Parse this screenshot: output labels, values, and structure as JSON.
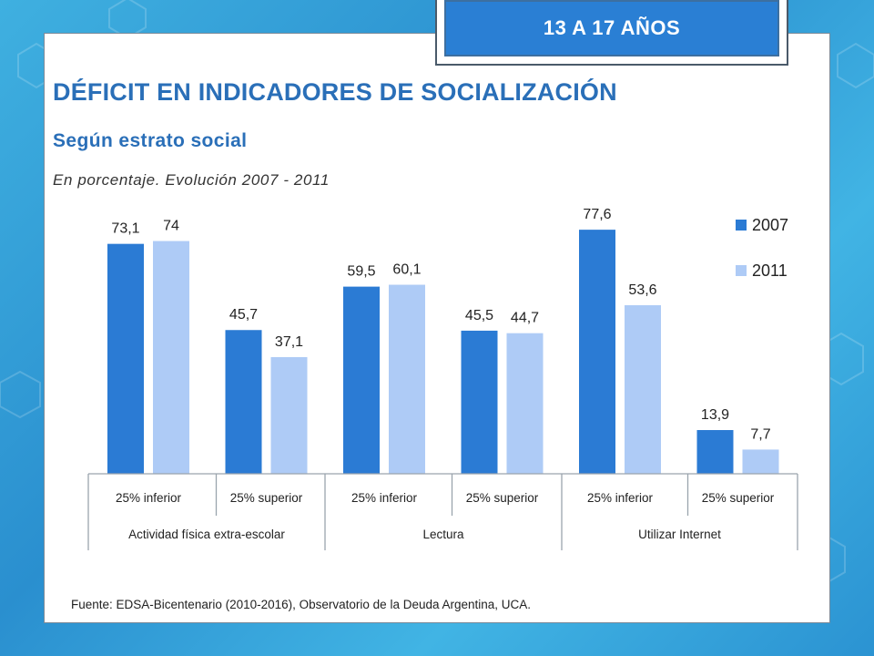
{
  "badge": {
    "text": "13 A 17 AÑOS"
  },
  "header": {
    "title": "DÉFICIT EN INDICADORES DE SOCIALIZACIÓN",
    "subtitle": "Según estrato social",
    "note": "En porcentaje. Evolución 2007 - 2011"
  },
  "footer": {
    "source": "Fuente: EDSA-Bicentenario (2010-2016), Observatorio de la Deuda Argentina, UCA."
  },
  "chart_data": {
    "type": "bar",
    "categories": [
      "25% inferior",
      "25% superior",
      "25% inferior",
      "25% superior",
      "25% inferior",
      "25% superior"
    ],
    "groups": [
      {
        "label": "Actividad física extra-escolar",
        "categories": [
          "25% inferior",
          "25% superior"
        ]
      },
      {
        "label": "Lectura",
        "categories": [
          "25% inferior",
          "25% superior"
        ]
      },
      {
        "label": "Utilizar Internet",
        "categories": [
          "25% inferior",
          "25% superior"
        ]
      }
    ],
    "series": [
      {
        "name": "2007",
        "values": [
          73.1,
          45.7,
          59.5,
          45.5,
          77.6,
          13.9
        ],
        "labels": [
          "73,1",
          "45,7",
          "59,5",
          "45,5",
          "77,6",
          "13,9"
        ],
        "color": "#2b7bd4"
      },
      {
        "name": "2011",
        "values": [
          74,
          37.1,
          60.1,
          44.7,
          53.6,
          7.7
        ],
        "labels": [
          "74",
          "37,1",
          "60,1",
          "44,7",
          "53,6",
          "7,7"
        ],
        "color": "#aecbf6"
      }
    ],
    "ylim": [
      0,
      100
    ],
    "legend": "top-right",
    "grid": false
  }
}
